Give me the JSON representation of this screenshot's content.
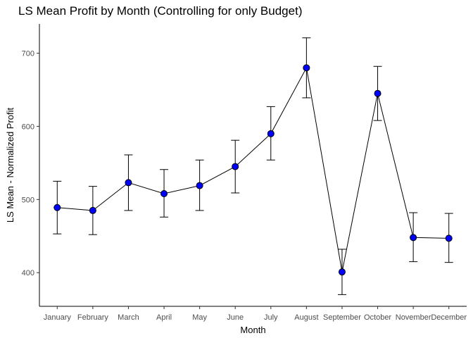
{
  "chart_data": {
    "type": "line",
    "title": "LS Mean Profit by Month (Controlling for only Budget)",
    "xlabel": "Month",
    "ylabel": "LS Mean - Normalized Profit",
    "categories": [
      "January",
      "February",
      "March",
      "April",
      "May",
      "June",
      "July",
      "August",
      "September",
      "October",
      "November",
      "December"
    ],
    "series": [
      {
        "values": [
          489,
          485,
          523,
          508,
          519,
          545,
          590,
          680,
          401,
          645,
          448,
          447
        ],
        "lower": [
          453,
          452,
          485,
          476,
          485,
          509,
          554,
          639,
          370,
          608,
          415,
          414
        ],
        "upper": [
          525,
          518,
          561,
          541,
          554,
          581,
          627,
          721,
          432,
          682,
          482,
          481
        ]
      }
    ],
    "yticks": [
      400,
      500,
      600,
      700
    ],
    "ylim": [
      354,
      740
    ],
    "grid": false,
    "legend": "none",
    "colors": {
      "point_fill": "#0000ff",
      "point_stroke": "#000000",
      "line": "#000000",
      "errorbar": "#000000",
      "axis": "#000000"
    }
  }
}
